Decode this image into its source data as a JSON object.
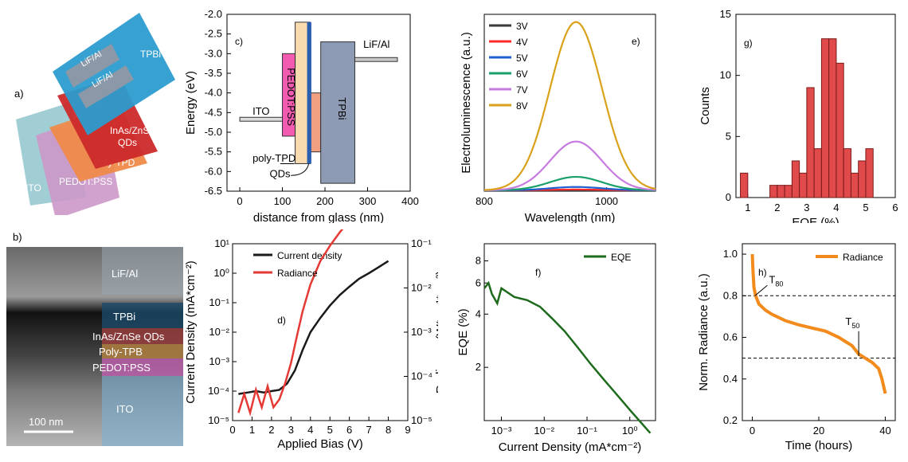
{
  "colors": {
    "black": "#1a1a1a",
    "red": "#e53935",
    "green_dark": "#1e6b1e",
    "orange": "#f28a1c",
    "hist": "#e04a4a",
    "spectra": [
      "#3a3a3a",
      "#ff2a2a",
      "#1f5fcf",
      "#1aa06a",
      "#c77be0",
      "#d9a21a"
    ]
  },
  "panel_a": {
    "label": "a)",
    "layers": [
      "LiF/Al",
      "LiF/Al",
      "TPBi",
      "InAs/ZnSe QDs",
      "Poly-TPD",
      "PEDOT:PSS",
      "ITO"
    ]
  },
  "panel_b": {
    "label": "b)",
    "layers": [
      "LiF/Al",
      "TPBi",
      "InAs/ZnSe QDs",
      "Poly-TPB",
      "PEDOT:PSS",
      "ITO"
    ],
    "scalebar": "100 nm"
  },
  "chart_data": [
    {
      "id": "c",
      "type": "diagram",
      "panel_label": "c)",
      "xlabel": "distance from glass (nm)",
      "ylabel": "Energy (eV)",
      "xlim": [
        -30,
        400
      ],
      "ylim": [
        -6.5,
        -2.0
      ],
      "xticks": [
        "0",
        "100",
        "200",
        "300",
        "400"
      ],
      "yticks": [
        "-2.0",
        "-2.5",
        "-3.0",
        "-3.5",
        "-4.0",
        "-4.5",
        "-5.0",
        "-5.5",
        "-6.0",
        "-6.5"
      ],
      "levels": [
        {
          "name": "ITO",
          "x": [
            0,
            100
          ],
          "top": -4.62,
          "bottom": -4.72
        },
        {
          "name": "PEDOT:PSS",
          "x": [
            100,
            130
          ],
          "top": -3.0,
          "bottom": -5.1
        },
        {
          "name": "poly-TPD",
          "x": [
            130,
            165
          ],
          "top": -2.2,
          "bottom": -5.8
        },
        {
          "name": "QDs",
          "x": [
            165,
            190
          ],
          "top": -4.0,
          "bottom": -5.5
        },
        {
          "name": "TPBi",
          "x": [
            190,
            270
          ],
          "top": -2.7,
          "bottom": -6.3
        },
        {
          "name": "LiF/Al",
          "x": [
            270,
            370
          ],
          "top": -3.1,
          "bottom": -3.2
        }
      ],
      "labels": [
        "ITO",
        "PEDOT:PSS",
        "TPBi",
        "LiF/Al",
        "poly-TPD",
        "QDs"
      ]
    },
    {
      "id": "d",
      "type": "line",
      "panel_label": "d)",
      "xlabel": "Applied Bias (V)",
      "ylabel": "Current Density (mA*cm⁻²)",
      "y2label": "Radiance (W*sr⁻¹*m⁻²)",
      "xlim": [
        0,
        9
      ],
      "ylim_log": [
        -5,
        1
      ],
      "y2lim_log": [
        -5,
        -1
      ],
      "xticks": [
        "0",
        "1",
        "2",
        "3",
        "4",
        "5",
        "6",
        "7",
        "8",
        "9"
      ],
      "yticks": [
        "10⁻⁵",
        "10⁻⁴",
        "10⁻³",
        "10⁻²",
        "10⁻¹",
        "10⁰",
        "10¹"
      ],
      "y2ticks": [
        "10⁻⁵",
        "10⁻⁴",
        "10⁻³",
        "10⁻²",
        "10⁻¹"
      ],
      "series": [
        {
          "name": "Current density",
          "x": [
            0.3,
            0.8,
            1.2,
            1.6,
            2.0,
            2.4,
            2.8,
            3.2,
            3.6,
            4.0,
            4.5,
            5.0,
            5.5,
            6.0,
            6.5,
            7.0,
            7.5,
            8.0
          ],
          "y": [
            8e-05,
            9e-05,
            0.0001,
            9e-05,
            0.0001,
            0.00011,
            0.00018,
            0.0005,
            0.0025,
            0.01,
            0.03,
            0.08,
            0.18,
            0.35,
            0.65,
            1.0,
            1.6,
            2.6
          ]
        },
        {
          "name": "Radiance",
          "x": [
            0.3,
            0.6,
            0.9,
            1.2,
            1.5,
            1.8,
            2.1,
            2.4,
            2.7,
            3.0,
            3.3,
            3.6,
            4.0,
            4.5,
            5.0,
            5.5,
            6.0,
            6.5,
            7.0,
            7.5,
            8.0
          ],
          "y": [
            1.5e-05,
            4e-05,
            1.5e-05,
            5e-05,
            2e-05,
            6e-05,
            2e-05,
            3e-05,
            7e-05,
            0.0002,
            0.0008,
            0.003,
            0.012,
            0.04,
            0.09,
            0.18,
            0.33,
            0.55,
            0.9,
            1.4,
            2.2
          ]
        }
      ]
    },
    {
      "id": "e",
      "type": "line",
      "panel_label": "e)",
      "xlabel": "Wavelength (nm)",
      "ylabel": "Electroluminescence (a.u.)",
      "xlim": [
        800,
        1080
      ],
      "xticks": [
        "800",
        "1000"
      ],
      "ylim": [
        0,
        1.05
      ],
      "series": [
        {
          "name": "3V",
          "peak": 0.0,
          "center": 950,
          "width": 60
        },
        {
          "name": "4V",
          "peak": 0.005,
          "center": 950,
          "width": 60
        },
        {
          "name": "5V",
          "peak": 0.02,
          "center": 950,
          "width": 60
        },
        {
          "name": "6V",
          "peak": 0.08,
          "center": 950,
          "width": 60
        },
        {
          "name": "7V",
          "peak": 0.29,
          "center": 950,
          "width": 60
        },
        {
          "name": "8V",
          "peak": 1.0,
          "center": 950,
          "width": 60
        }
      ]
    },
    {
      "id": "f",
      "type": "line",
      "panel_label": "f)",
      "xlabel": "Current Density (mA*cm⁻²)",
      "ylabel": "EQE (%)",
      "xlim_log": [
        -3.4,
        0.6
      ],
      "ylim_log": [
        0,
        1
      ],
      "xticks": [
        "10⁻³",
        "10⁻²",
        "10⁻¹",
        "10⁰"
      ],
      "yticks": [
        "2",
        "4",
        "6",
        "8"
      ],
      "series": [
        {
          "name": "EQE",
          "x": [
            0.0004,
            0.0005,
            0.0006,
            0.0008,
            0.001,
            0.002,
            0.004,
            0.008,
            0.015,
            0.03,
            0.06,
            0.12,
            0.25,
            0.5,
            1.0,
            2.0,
            3.0
          ],
          "y": [
            5.6,
            6.0,
            5.2,
            4.6,
            5.6,
            5.0,
            4.8,
            4.4,
            3.8,
            3.2,
            2.6,
            2.1,
            1.7,
            1.4,
            1.15,
            0.95,
            0.85
          ]
        }
      ]
    },
    {
      "id": "g",
      "type": "bar",
      "panel_label": "g)",
      "xlabel": "EQE (%)",
      "ylabel": "Counts",
      "xlim": [
        0.6,
        6
      ],
      "ylim": [
        0,
        15
      ],
      "xticks": [
        "1",
        "2",
        "3",
        "4",
        "5",
        "6"
      ],
      "yticks": [
        "0",
        "5",
        "10",
        "15"
      ],
      "bin_width": 0.25,
      "bins": [
        0.875,
        1.875,
        2.125,
        2.375,
        2.625,
        2.875,
        3.125,
        3.375,
        3.625,
        3.875,
        4.125,
        4.375,
        4.625,
        4.875,
        5.125,
        5.375
      ],
      "values": [
        2,
        1,
        1,
        1,
        3,
        2,
        9,
        4,
        13,
        13,
        11,
        4,
        2,
        3,
        4,
        0
      ]
    },
    {
      "id": "h",
      "type": "line",
      "panel_label": "h)",
      "xlabel": "Time (hours)",
      "ylabel": "Norm. Radiance (a.u.)",
      "xlim": [
        -3,
        43
      ],
      "ylim": [
        0.2,
        1.05
      ],
      "xticks": [
        "0",
        "20",
        "40"
      ],
      "yticks": [
        "0.2",
        "0.4",
        "0.6",
        "0.8",
        "1.0"
      ],
      "hlines": [
        0.8,
        0.5
      ],
      "annotations": [
        "T",
        "80",
        "T",
        "50"
      ],
      "series": [
        {
          "name": "Radiance",
          "x": [
            0,
            0.2,
            0.5,
            1,
            2,
            4,
            6,
            8,
            10,
            14,
            18,
            22,
            26,
            28,
            30,
            32,
            34,
            36,
            38,
            39,
            40
          ],
          "y": [
            1.0,
            0.92,
            0.84,
            0.8,
            0.76,
            0.73,
            0.71,
            0.695,
            0.68,
            0.66,
            0.645,
            0.63,
            0.6,
            0.58,
            0.56,
            0.52,
            0.5,
            0.48,
            0.45,
            0.4,
            0.33
          ]
        }
      ]
    }
  ]
}
